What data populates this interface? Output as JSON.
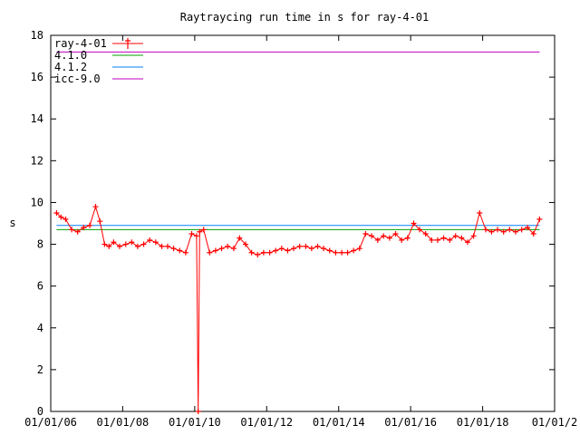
{
  "chart_data": {
    "type": "line",
    "title": "Raytraycing run time in s for ray-4-01",
    "xlabel": "",
    "ylabel": "s",
    "ylim": [
      0,
      18
    ],
    "yticks": [
      "0",
      "2",
      "4",
      "6",
      "8",
      "10",
      "12",
      "14",
      "16",
      "18"
    ],
    "xlim": [
      "2006-01-01",
      "2020-01-01"
    ],
    "xticks": [
      "01/01/06",
      "01/01/08",
      "01/01/10",
      "01/01/12",
      "01/01/14",
      "01/01/16",
      "01/01/18",
      "01/01/2"
    ],
    "xtick_dates": [
      "2006-01-01",
      "2008-01-01",
      "2010-01-01",
      "2012-01-01",
      "2014-01-01",
      "2016-01-01",
      "2018-01-01",
      "2020-01-01"
    ],
    "grid": false,
    "legend_position": "top-left",
    "series": [
      {
        "name": "ray-4-01",
        "color": "#ff0000",
        "style": "points-line",
        "x": [
          "2006-03-01",
          "2006-04-15",
          "2006-06-01",
          "2006-08-01",
          "2006-10-01",
          "2006-12-01",
          "2007-02-01",
          "2007-04-01",
          "2007-05-15",
          "2007-07-01",
          "2007-08-15",
          "2007-10-01",
          "2007-12-01",
          "2008-02-01",
          "2008-04-01",
          "2008-06-01",
          "2008-08-01",
          "2008-10-01",
          "2008-12-01",
          "2009-02-01",
          "2009-04-01",
          "2009-06-01",
          "2009-08-01",
          "2009-10-01",
          "2009-12-01",
          "2010-01-20",
          "2010-02-05",
          "2010-02-20",
          "2010-04-01",
          "2010-06-01",
          "2010-08-01",
          "2010-10-01",
          "2010-12-01",
          "2011-02-01",
          "2011-04-01",
          "2011-06-01",
          "2011-08-01",
          "2011-10-01",
          "2011-12-01",
          "2012-02-01",
          "2012-04-01",
          "2012-06-01",
          "2012-08-01",
          "2012-10-01",
          "2012-12-01",
          "2013-02-01",
          "2013-04-01",
          "2013-06-01",
          "2013-08-01",
          "2013-10-01",
          "2013-12-01",
          "2014-02-01",
          "2014-04-01",
          "2014-06-01",
          "2014-08-01",
          "2014-10-01",
          "2014-12-01",
          "2015-02-01",
          "2015-04-01",
          "2015-06-01",
          "2015-08-01",
          "2015-10-01",
          "2015-12-01",
          "2016-02-01",
          "2016-04-01",
          "2016-06-01",
          "2016-08-01",
          "2016-10-01",
          "2016-12-01",
          "2017-02-01",
          "2017-04-01",
          "2017-06-01",
          "2017-08-01",
          "2017-10-01",
          "2017-12-01",
          "2018-02-01",
          "2018-04-01",
          "2018-06-01",
          "2018-08-01",
          "2018-10-01",
          "2018-12-01",
          "2019-02-01",
          "2019-04-01",
          "2019-06-01",
          "2019-08-01"
        ],
        "y": [
          9.5,
          9.3,
          9.2,
          8.7,
          8.6,
          8.8,
          8.9,
          9.8,
          9.1,
          8.0,
          7.9,
          8.1,
          7.9,
          8.0,
          8.1,
          7.9,
          8.0,
          8.2,
          8.1,
          7.9,
          7.9,
          7.8,
          7.7,
          7.6,
          8.5,
          8.4,
          0.0,
          8.6,
          8.7,
          7.6,
          7.7,
          7.8,
          7.9,
          7.8,
          8.3,
          8.0,
          7.6,
          7.5,
          7.6,
          7.6,
          7.7,
          7.8,
          7.7,
          7.8,
          7.9,
          7.9,
          7.8,
          7.9,
          7.8,
          7.7,
          7.6,
          7.6,
          7.6,
          7.7,
          7.8,
          8.5,
          8.4,
          8.2,
          8.4,
          8.3,
          8.5,
          8.2,
          8.3,
          9.0,
          8.7,
          8.5,
          8.2,
          8.2,
          8.3,
          8.2,
          8.4,
          8.3,
          8.1,
          8.4,
          9.5,
          8.7,
          8.6,
          8.7,
          8.6,
          8.7,
          8.6,
          8.7,
          8.8,
          8.5,
          9.2
        ]
      },
      {
        "name": "4.1.0",
        "color": "#00a000",
        "style": "line",
        "x": [
          "2006-03-01",
          "2019-08-01"
        ],
        "y": [
          8.7,
          8.7
        ]
      },
      {
        "name": "4.1.2",
        "color": "#0080ff",
        "style": "line",
        "x": [
          "2006-03-01",
          "2019-08-01"
        ],
        "y": [
          8.9,
          8.9
        ]
      },
      {
        "name": "icc-9.0",
        "color": "#c000c0",
        "style": "line",
        "x": [
          "2006-03-01",
          "2019-08-01"
        ],
        "y": [
          17.2,
          17.2
        ]
      }
    ]
  }
}
